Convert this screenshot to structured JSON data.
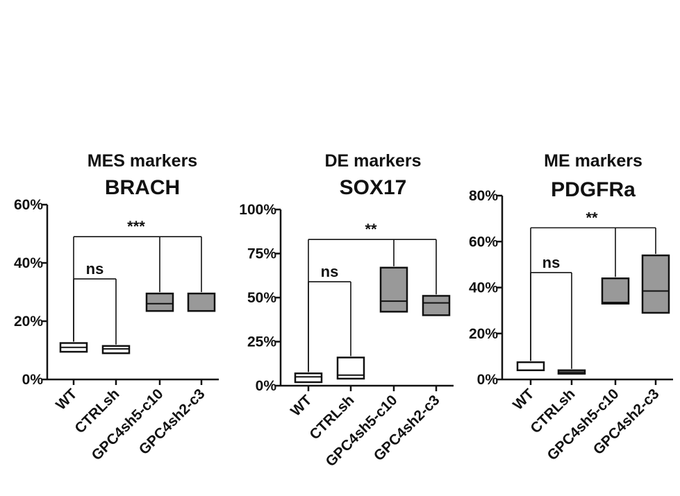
{
  "chart_data": [
    {
      "type": "box",
      "subtitle": "MES markers",
      "title": "BRACH",
      "categories": [
        "WT",
        "CTRLsh",
        "GPC4sh5-c10",
        "GPC4sh2-c3"
      ],
      "yticks": [
        "0%",
        "20%",
        "40%",
        "60%"
      ],
      "ylim": [
        0,
        60
      ],
      "boxes": [
        {
          "category": "WT",
          "q1": 9.5,
          "median": 11,
          "q3": 12.5,
          "fill": "#ffffff"
        },
        {
          "category": "CTRLsh",
          "q1": 9,
          "median": 10.5,
          "q3": 11.5,
          "fill": "#ffffff"
        },
        {
          "category": "GPC4sh5-c10",
          "q1": 23.5,
          "median": 26,
          "q3": 29.5,
          "fill": "#999999"
        },
        {
          "category": "GPC4sh2-c3",
          "q1": 23.5,
          "median": 23.5,
          "q3": 29.5,
          "fill": "#999999"
        }
      ],
      "significance": [
        {
          "label": "ns",
          "from": "WT",
          "to": [
            "CTRLsh"
          ],
          "level": 34.5
        },
        {
          "label": "***",
          "from": "WT",
          "to": [
            "GPC4sh5-c10",
            "GPC4sh2-c3"
          ],
          "level": 49
        }
      ]
    },
    {
      "type": "box",
      "subtitle": "DE markers",
      "title": "SOX17",
      "categories": [
        "WT",
        "CTRLsh",
        "GPC4sh5-c10",
        "GPC4sh2-c3"
      ],
      "yticks": [
        "0%",
        "25%",
        "50%",
        "75%",
        "100%"
      ],
      "ylim": [
        0,
        100
      ],
      "boxes": [
        {
          "category": "WT",
          "q1": 2,
          "median": 5,
          "q3": 7,
          "fill": "#ffffff"
        },
        {
          "category": "CTRLsh",
          "q1": 4,
          "median": 6,
          "q3": 16,
          "fill": "#ffffff"
        },
        {
          "category": "GPC4sh5-c10",
          "q1": 42,
          "median": 48,
          "q3": 67,
          "fill": "#999999"
        },
        {
          "category": "GPC4sh2-c3",
          "q1": 40,
          "median": 47,
          "q3": 51,
          "fill": "#999999"
        }
      ],
      "significance": [
        {
          "label": "ns",
          "from": "WT",
          "to": [
            "CTRLsh"
          ],
          "level": 59
        },
        {
          "label": "**",
          "from": "WT",
          "to": [
            "GPC4sh5-c10",
            "GPC4sh2-c3"
          ],
          "level": 83
        }
      ]
    },
    {
      "type": "box",
      "subtitle": "ME markers",
      "title": "PDGFRa",
      "categories": [
        "WT",
        "CTRLsh",
        "GPC4sh5-c10",
        "GPC4sh2-c3"
      ],
      "yticks": [
        "0%",
        "20%",
        "40%",
        "60%",
        "80%"
      ],
      "ylim": [
        0,
        80
      ],
      "boxes": [
        {
          "category": "WT",
          "q1": 4,
          "median": 4,
          "q3": 7.5,
          "fill": "#ffffff"
        },
        {
          "category": "CTRLsh",
          "q1": 2.5,
          "median": 3.2,
          "q3": 4,
          "fill": "#ffffff"
        },
        {
          "category": "GPC4sh5-c10",
          "q1": 33,
          "median": 33.5,
          "q3": 44,
          "fill": "#999999"
        },
        {
          "category": "GPC4sh2-c3",
          "q1": 29,
          "median": 38.5,
          "q3": 54,
          "fill": "#999999"
        }
      ],
      "significance": [
        {
          "label": "ns",
          "from": "WT",
          "to": [
            "CTRLsh"
          ],
          "level": 46.5
        },
        {
          "label": "**",
          "from": "WT",
          "to": [
            "GPC4sh5-c10",
            "GPC4sh2-c3"
          ],
          "level": 66
        }
      ]
    }
  ]
}
